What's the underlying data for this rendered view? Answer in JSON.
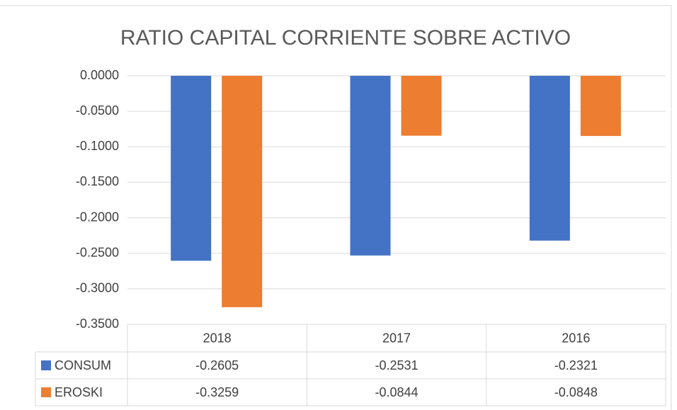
{
  "chart_data": {
    "type": "bar",
    "title": "RATIO CAPITAL CORRIENTE SOBRE ACTIVO",
    "categories": [
      "2018",
      "2017",
      "2016"
    ],
    "series": [
      {
        "name": "CONSUM",
        "color": "#4472c4",
        "values": [
          -0.2605,
          -0.2531,
          -0.2321
        ]
      },
      {
        "name": "EROSKI",
        "color": "#ed7d31",
        "values": [
          -0.3259,
          -0.0844,
          -0.0848
        ]
      }
    ],
    "ylim": [
      -0.35,
      0
    ],
    "yticks": [
      {
        "value": 0,
        "label": "0.0000"
      },
      {
        "value": -0.05,
        "label": "-0.0500"
      },
      {
        "value": -0.1,
        "label": "-0.1000"
      },
      {
        "value": -0.15,
        "label": "-0.1500"
      },
      {
        "value": -0.2,
        "label": "-0.2000"
      },
      {
        "value": -0.25,
        "label": "-0.2500"
      },
      {
        "value": -0.3,
        "label": "-0.3000"
      },
      {
        "value": -0.35,
        "label": "-0.3500"
      }
    ],
    "grid": true
  }
}
